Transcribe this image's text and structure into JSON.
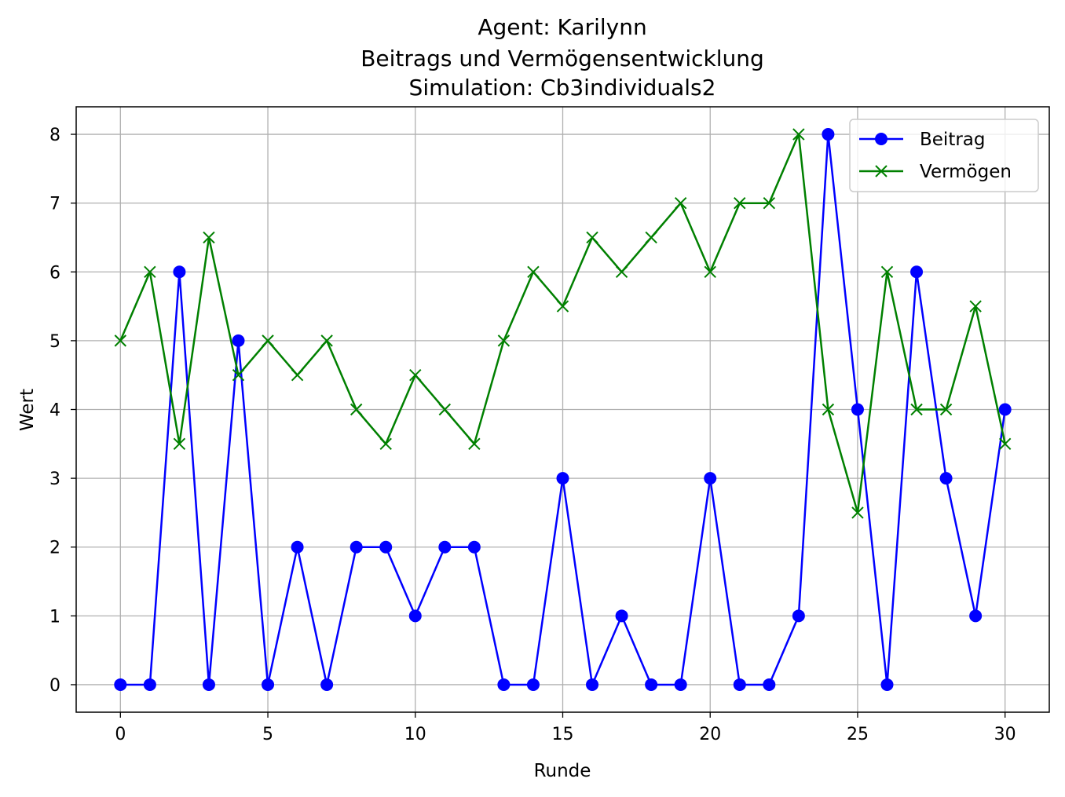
{
  "chart_data": {
    "type": "line",
    "title_lines": [
      "Agent: Karilynn",
      "Beitrags und Vermögensentwicklung",
      "Simulation: Cb3individuals2"
    ],
    "xlabel": "Runde",
    "ylabel": "Wert",
    "xlim": [
      -1.5,
      31.5
    ],
    "ylim": [
      -0.4,
      8.4
    ],
    "xticks": [
      0,
      5,
      10,
      15,
      20,
      25,
      30
    ],
    "yticks": [
      0,
      1,
      2,
      3,
      4,
      5,
      6,
      7,
      8
    ],
    "grid": true,
    "legend_position": "top-right",
    "x": [
      0,
      1,
      2,
      3,
      4,
      5,
      6,
      7,
      8,
      9,
      10,
      11,
      12,
      13,
      14,
      15,
      16,
      17,
      18,
      19,
      20,
      21,
      22,
      23,
      24,
      25,
      26,
      27,
      28,
      29,
      30
    ],
    "series": [
      {
        "name": "Beitrag",
        "color": "#0000ff",
        "marker": "circle",
        "values": [
          0,
          0,
          6,
          0,
          5,
          0,
          2,
          0,
          2,
          2,
          1,
          2,
          2,
          0,
          0,
          3,
          0,
          1,
          0,
          0,
          3,
          0,
          0,
          1,
          8,
          4,
          0,
          6,
          3,
          1,
          4
        ]
      },
      {
        "name": "Vermögen",
        "color": "#008000",
        "marker": "x",
        "values": [
          5,
          6,
          3.5,
          6.5,
          4.5,
          5,
          4.5,
          5,
          4,
          3.5,
          4.5,
          4,
          3.5,
          5,
          6,
          5.5,
          6.5,
          6,
          6.5,
          7,
          6,
          7,
          7,
          8,
          4,
          2.5,
          6,
          4,
          4,
          5.5,
          3.5
        ]
      }
    ]
  }
}
